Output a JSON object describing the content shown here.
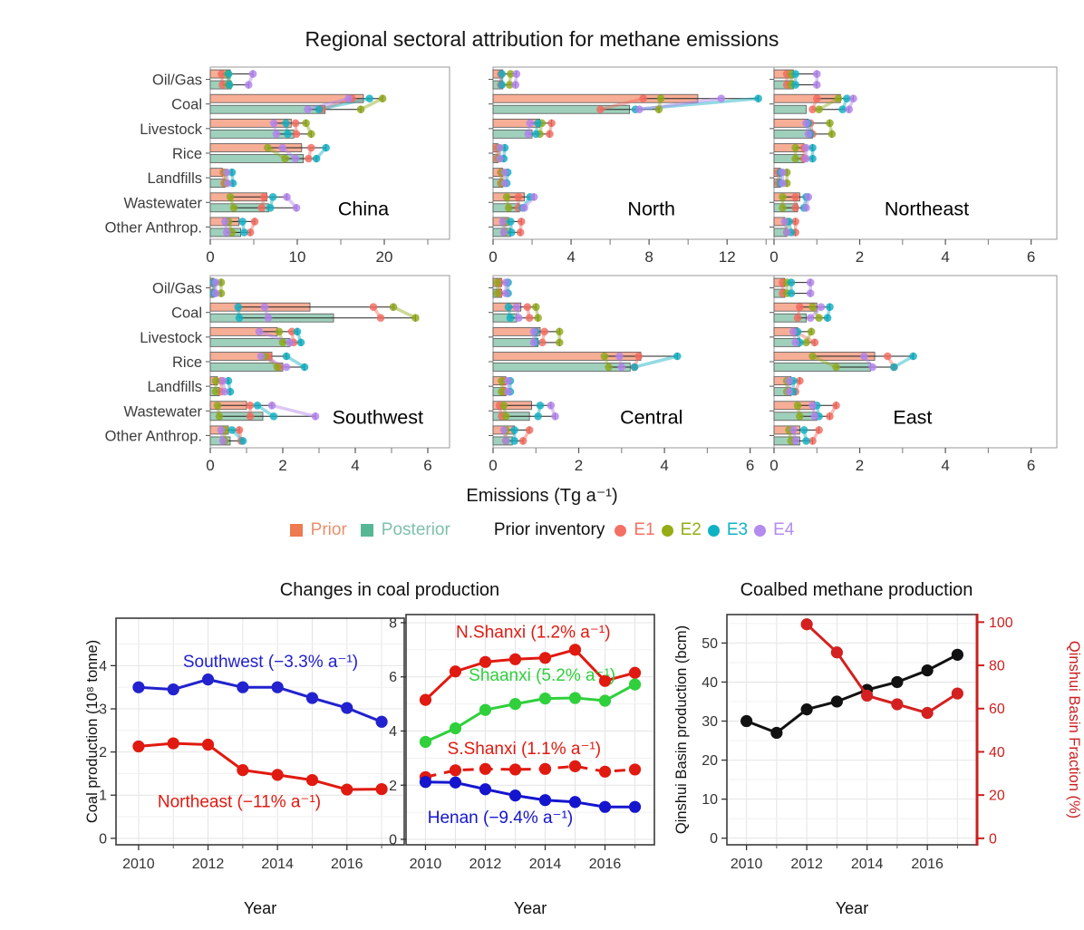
{
  "chart_data": [
    {
      "type": "bar",
      "orientation": "horizontal",
      "title": "Regional sectoral attribution for methane emissions",
      "xlabel": "Emissions (Tg a⁻¹)",
      "categories": [
        "Oil/Gas",
        "Coal",
        "Livestock",
        "Rice",
        "Landfills",
        "Wastewater",
        "Other Anthrop."
      ],
      "bar_series": [
        "Prior",
        "Posterior"
      ],
      "dot_series": [
        "E1",
        "E2",
        "E3",
        "E4"
      ],
      "colors": {
        "prior_bar": "#F7AE96",
        "posterior_bar": "#9FD0BC",
        "ensemble": [
          "#F16A5E",
          "#8FA81B",
          "#10AFC2",
          "#B183EC"
        ]
      },
      "legend": {
        "prior_label": "Prior",
        "posterior_label": "Posterior",
        "inventory_label": "Prior inventory",
        "prior_swatch": "#ED7A51",
        "posterior_swatch": "#57B795",
        "prior_text": "#E8906B",
        "posterior_text": "#7FC0AA",
        "entries": [
          {
            "label": "E1",
            "color": "#F47064"
          },
          {
            "label": "E2",
            "color": "#96AC15"
          },
          {
            "label": "E3",
            "color": "#0FB1C4"
          },
          {
            "label": "E4",
            "color": "#B48BEF"
          }
        ]
      },
      "panels": [
        {
          "name": "China",
          "show_category_labels": true,
          "xmax": 27.5,
          "xticks": [
            0,
            10,
            20
          ],
          "xticks_minor": [
            5,
            15,
            25
          ],
          "label_x": 0.64,
          "prior": [
            2.3,
            17.6,
            9.3,
            10.5,
            1.4,
            6.5,
            3.3
          ],
          "posterior": [
            2.4,
            13.2,
            9.6,
            10.7,
            1.7,
            6.7,
            3.5
          ],
          "dots_prior": [
            [
              1.3,
              2.0,
              2.1,
              4.9
            ],
            [
              16.3,
              19.8,
              18.3,
              15.9
            ],
            [
              9.8,
              11.0,
              8.7,
              7.3
            ],
            [
              11.6,
              6.6,
              13.3,
              8.3
            ],
            [
              1.5,
              1.7,
              2.5,
              1.9
            ],
            [
              6.2,
              2.3,
              7.2,
              8.8
            ],
            [
              5.1,
              2.1,
              3.7,
              1.7
            ]
          ],
          "dots_post": [
            [
              1.4,
              2.1,
              2.2,
              4.4
            ],
            [
              12.8,
              17.3,
              12.5,
              11.2
            ],
            [
              9.9,
              11.6,
              8.9,
              7.6
            ],
            [
              11.3,
              8.6,
              12.2,
              9.8
            ],
            [
              1.6,
              1.8,
              2.6,
              2.0
            ],
            [
              5.9,
              2.7,
              6.9,
              9.9
            ],
            [
              4.6,
              2.5,
              3.9,
              1.9
            ]
          ]
        },
        {
          "name": "North",
          "show_category_labels": false,
          "xmax": 14.5,
          "xticks": [
            0,
            4,
            8,
            12
          ],
          "xticks_minor": [
            2,
            6,
            10,
            14
          ],
          "label_x": 0.56,
          "prior": [
            0.5,
            10.5,
            2.4,
            0.25,
            0.5,
            1.6,
            0.8
          ],
          "posterior": [
            0.5,
            7.0,
            2.0,
            0.25,
            0.5,
            1.35,
            0.9
          ],
          "dots_prior": [
            [
              0.4,
              0.9,
              0.45,
              1.2
            ],
            [
              7.7,
              8.6,
              13.6,
              11.7
            ],
            [
              3.0,
              2.5,
              2.3,
              1.9
            ],
            [
              0.2,
              0.3,
              0.6,
              0.35
            ],
            [
              0.4,
              0.45,
              0.75,
              0.6
            ],
            [
              1.3,
              0.7,
              1.9,
              2.1
            ],
            [
              1.45,
              0.6,
              0.9,
              0.5
            ]
          ],
          "dots_post": [
            [
              0.4,
              0.85,
              0.45,
              1.15
            ],
            [
              5.5,
              8.5,
              7.3,
              7.5
            ],
            [
              2.9,
              2.4,
              2.2,
              1.8
            ],
            [
              0.2,
              0.3,
              0.55,
              0.35
            ],
            [
              0.4,
              0.45,
              0.7,
              0.6
            ],
            [
              1.3,
              0.8,
              1.5,
              1.6
            ],
            [
              1.4,
              0.6,
              0.95,
              0.55
            ]
          ]
        },
        {
          "name": "Northeast",
          "show_category_labels": false,
          "xmax": 6.6,
          "xticks": [
            0,
            2,
            4,
            6
          ],
          "xticks_minor": [
            1,
            3,
            5
          ],
          "label_x": 0.54,
          "prior": [
            0.45,
            1.55,
            0.8,
            0.7,
            0.15,
            0.6,
            0.25
          ],
          "posterior": [
            0.45,
            0.75,
            0.9,
            0.7,
            0.15,
            0.55,
            0.3
          ],
          "dots_prior": [
            [
              0.3,
              0.4,
              0.5,
              1.0
            ],
            [
              1.0,
              1.5,
              1.7,
              1.85
            ],
            [
              0.85,
              1.3,
              0.8,
              0.75
            ],
            [
              0.7,
              0.5,
              0.9,
              0.75
            ],
            [
              0.1,
              0.3,
              0.15,
              0.2
            ],
            [
              0.5,
              0.2,
              0.75,
              0.8
            ],
            [
              0.5,
              0.3,
              0.35,
              0.25
            ]
          ],
          "dots_post": [
            [
              0.3,
              0.4,
              0.5,
              1.0
            ],
            [
              0.9,
              1.05,
              1.6,
              1.75
            ],
            [
              0.9,
              1.35,
              0.85,
              0.8
            ],
            [
              0.7,
              0.5,
              0.9,
              0.75
            ],
            [
              0.1,
              0.3,
              0.15,
              0.2
            ],
            [
              0.5,
              0.2,
              0.7,
              0.75
            ],
            [
              0.5,
              0.3,
              0.4,
              0.3
            ]
          ]
        },
        {
          "name": "Southwest",
          "show_category_labels": true,
          "xmax": 6.6,
          "xticks": [
            0,
            2,
            4,
            6
          ],
          "xticks_minor": [
            1,
            3,
            5
          ],
          "label_x": 0.7,
          "prior": [
            0.1,
            2.75,
            1.85,
            1.7,
            0.2,
            1.0,
            0.5
          ],
          "posterior": [
            0.1,
            3.4,
            2.2,
            2.0,
            0.25,
            1.45,
            0.55
          ],
          "dots_prior": [
            [
              0.1,
              0.3,
              0.1,
              0.15
            ],
            [
              4.5,
              5.05,
              0.77,
              1.5
            ],
            [
              2.25,
              1.9,
              2.4,
              1.35
            ],
            [
              1.6,
              1.5,
              2.1,
              1.4
            ],
            [
              0.3,
              0.15,
              0.5,
              0.35
            ],
            [
              1.1,
              0.2,
              1.3,
              1.7
            ],
            [
              0.8,
              0.4,
              0.6,
              0.3
            ]
          ],
          "dots_post": [
            [
              0.1,
              0.3,
              0.1,
              0.15
            ],
            [
              4.7,
              5.66,
              0.8,
              1.6
            ],
            [
              2.3,
              2.0,
              2.5,
              2.2
            ],
            [
              1.9,
              1.85,
              2.6,
              2.1
            ],
            [
              0.3,
              0.15,
              0.55,
              0.4
            ],
            [
              1.1,
              0.25,
              1.75,
              2.9
            ],
            [
              0.85,
              0.4,
              0.9,
              0.35
            ]
          ]
        },
        {
          "name": "Central",
          "show_category_labels": false,
          "xmax": 6.6,
          "xticks": [
            0,
            2,
            4,
            6
          ],
          "xticks_minor": [
            1,
            3,
            5
          ],
          "label_x": 0.56,
          "prior": [
            0.2,
            0.65,
            1.1,
            3.45,
            0.3,
            0.9,
            0.5
          ],
          "posterior": [
            0.2,
            0.55,
            1.05,
            3.2,
            0.3,
            0.85,
            0.45
          ],
          "dots_prior": [
            [
              0.15,
              0.1,
              0.35,
              0.3
            ],
            [
              0.8,
              1.0,
              0.36,
              0.55
            ],
            [
              1.2,
              1.55,
              1.0,
              0.95
            ],
            [
              3.4,
              2.6,
              4.3,
              2.95
            ],
            [
              0.25,
              0.2,
              0.4,
              0.35
            ],
            [
              0.15,
              0.25,
              1.1,
              1.35
            ],
            [
              0.85,
              0.3,
              0.5,
              0.25
            ]
          ],
          "dots_post": [
            [
              0.15,
              0.1,
              0.35,
              0.3
            ],
            [
              0.85,
              1.05,
              0.4,
              0.6
            ],
            [
              1.15,
              1.55,
              1.0,
              0.95
            ],
            [
              3.3,
              2.7,
              3.3,
              3.0
            ],
            [
              0.25,
              0.2,
              0.4,
              0.35
            ],
            [
              0.2,
              0.3,
              1.05,
              1.45
            ],
            [
              0.7,
              0.3,
              0.5,
              0.3
            ]
          ]
        },
        {
          "name": "East",
          "show_category_labels": false,
          "xmax": 6.6,
          "xticks": [
            0,
            2,
            4,
            6
          ],
          "xticks_minor": [
            1,
            3,
            5
          ],
          "label_x": 0.49,
          "prior": [
            0.25,
            1.0,
            0.55,
            2.35,
            0.4,
            0.95,
            0.6
          ],
          "posterior": [
            0.25,
            0.75,
            0.6,
            2.25,
            0.4,
            1.0,
            0.6
          ],
          "dots_prior": [
            [
              0.2,
              0.3,
              0.4,
              0.85
            ],
            [
              0.6,
              0.9,
              1.3,
              1.1
            ],
            [
              0.5,
              0.87,
              0.55,
              0.45
            ],
            [
              2.65,
              0.9,
              3.25,
              2.1
            ],
            [
              0.6,
              0.3,
              0.45,
              0.35
            ],
            [
              1.45,
              0.55,
              1.0,
              0.9
            ],
            [
              1.05,
              0.35,
              0.7,
              0.45
            ]
          ],
          "dots_post": [
            [
              0.2,
              0.3,
              0.4,
              0.85
            ],
            [
              0.55,
              1.05,
              1.25,
              0.85
            ],
            [
              0.95,
              0.75,
              0.6,
              0.5
            ],
            [
              2.8,
              1.45,
              2.8,
              2.3
            ],
            [
              0.5,
              0.3,
              0.45,
              0.35
            ],
            [
              1.3,
              0.6,
              1.05,
              0.95
            ],
            [
              0.9,
              0.4,
              0.75,
              0.5
            ]
          ]
        }
      ]
    },
    {
      "type": "line",
      "title": "Changes in coal production",
      "xlabel": "Year",
      "ylabel": "Coal production (10⁸ tonne)",
      "x": [
        2010,
        2011,
        2012,
        2013,
        2014,
        2015,
        2016,
        2017
      ],
      "xlim": [
        2009.35,
        2017.65
      ],
      "ylim": [
        -0.15,
        5.1
      ],
      "xticks": [
        2010,
        2012,
        2014,
        2016
      ],
      "xticks_minor": [
        2011,
        2013,
        2015,
        2017
      ],
      "yticks": [
        0,
        1,
        2,
        3,
        4
      ],
      "yticks_minor": [
        0.5,
        1.5,
        2.5,
        3.5,
        4.5
      ],
      "series": [
        {
          "name": "Southwest",
          "label": "Southwest (−3.3% a⁻¹)",
          "color": "#2222CE",
          "values": [
            3.5,
            3.45,
            3.68,
            3.5,
            3.5,
            3.25,
            3.02,
            2.7
          ],
          "label_pos": [
            2013.8,
            3.97
          ]
        },
        {
          "name": "Northeast",
          "label": "Northeast (−11% a⁻¹)",
          "color": "#E01A10",
          "values": [
            2.13,
            2.2,
            2.17,
            1.58,
            1.47,
            1.35,
            1.13,
            1.14
          ],
          "label_pos": [
            2012.9,
            0.72
          ]
        }
      ]
    },
    {
      "type": "line",
      "title": "",
      "xlabel": "Year",
      "x": [
        2010,
        2011,
        2012,
        2013,
        2014,
        2015,
        2016,
        2017
      ],
      "xlim": [
        2009.35,
        2017.65
      ],
      "ylim": [
        -0.2,
        8.3
      ],
      "xticks": [
        2010,
        2012,
        2014,
        2016
      ],
      "xticks_minor": [
        2011,
        2013,
        2015,
        2017
      ],
      "yticks": [
        0,
        2,
        4,
        6,
        8
      ],
      "yticks_minor": [
        1,
        3,
        5,
        7
      ],
      "series": [
        {
          "name": "N.Shanxi",
          "label": "N.Shanxi (1.2% a⁻¹)",
          "color": "#E01A10",
          "values": [
            5.15,
            6.2,
            6.55,
            6.65,
            6.7,
            7.0,
            5.85,
            6.15
          ],
          "label_pos": [
            2013.6,
            7.45
          ]
        },
        {
          "name": "Shaanxi",
          "label": "Shaanxi (5.2% a⁻¹)",
          "color": "#2FD03C",
          "values": [
            3.6,
            4.1,
            4.78,
            5.0,
            5.2,
            5.22,
            5.12,
            5.72
          ],
          "label_pos": [
            2013.9,
            5.85
          ]
        },
        {
          "name": "S.Shanxi",
          "label": "S.Shanxi (1.1% a⁻¹)",
          "color": "#E01A10",
          "dash": true,
          "values": [
            2.3,
            2.55,
            2.6,
            2.58,
            2.6,
            2.7,
            2.5,
            2.58
          ],
          "label_pos": [
            2013.3,
            3.15
          ]
        },
        {
          "name": "Henan",
          "label": "Henan (−9.4% a⁻¹)",
          "color": "#1515CE",
          "values": [
            2.12,
            2.1,
            1.85,
            1.62,
            1.45,
            1.38,
            1.2,
            1.2
          ],
          "label_pos": [
            2012.5,
            0.6
          ]
        }
      ]
    },
    {
      "type": "line-dual-axis",
      "title": "Coalbed methane production",
      "xlabel": "Year",
      "ylabel_left": "Qinshui Basin production (bcm)",
      "ylabel_right": "Qinshui Basin Fraction (%)",
      "right_color": "#CC1F1F",
      "xlim": [
        2009.35,
        2017.65
      ],
      "ylim_left": [
        -1.7,
        57.3
      ],
      "yticks_left": [
        0,
        10,
        20,
        30,
        40,
        50
      ],
      "yticks_left_minor": [
        5,
        15,
        25,
        35,
        45,
        55
      ],
      "ylim_right": [
        -3,
        103.5
      ],
      "yticks_right": [
        0,
        20,
        40,
        60,
        80,
        100
      ],
      "xticks": [
        2010,
        2012,
        2014,
        2016
      ],
      "xticks_minor": [
        2011,
        2013,
        2015,
        2017
      ],
      "series": [
        {
          "name": "Qinshui Basin production",
          "axis": "left",
          "color": "#111111",
          "x": [
            2010,
            2011,
            2012,
            2013,
            2014,
            2015,
            2016,
            2017
          ],
          "values": [
            30,
            27,
            33,
            35,
            38,
            40,
            43,
            47
          ]
        },
        {
          "name": "Qinshui Basin Fraction",
          "axis": "right",
          "color": "#D42020",
          "x": [
            2012,
            2013,
            2014,
            2015,
            2016,
            2017
          ],
          "values": [
            99,
            86,
            66,
            62,
            58,
            67
          ]
        }
      ]
    }
  ]
}
